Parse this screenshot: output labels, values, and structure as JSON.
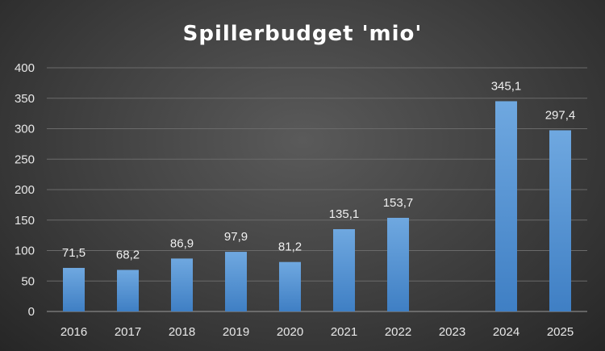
{
  "chart_data": {
    "type": "bar",
    "title": "Spillerbudget 'mio'",
    "categories": [
      "2016",
      "2017",
      "2018",
      "2019",
      "2020",
      "2021",
      "2022",
      "2023",
      "2024",
      "2025"
    ],
    "values": [
      71.5,
      68.2,
      86.9,
      97.9,
      81.2,
      135.1,
      153.7,
      null,
      345.1,
      297.4
    ],
    "data_labels": [
      "71,5",
      "68,2",
      "86,9",
      "97,9",
      "81,2",
      "135,1",
      "153,7",
      "",
      "345,1",
      "297,4"
    ],
    "y_ticks": [
      "0",
      "50",
      "100",
      "150",
      "200",
      "250",
      "300",
      "350",
      "400"
    ],
    "ylim": [
      0,
      400
    ],
    "xlabel": "",
    "ylabel": "",
    "grid": true,
    "legend": "none",
    "colors": {
      "bar_top": "#6fa8e0",
      "bar_bottom": "#3f7fc4"
    }
  }
}
